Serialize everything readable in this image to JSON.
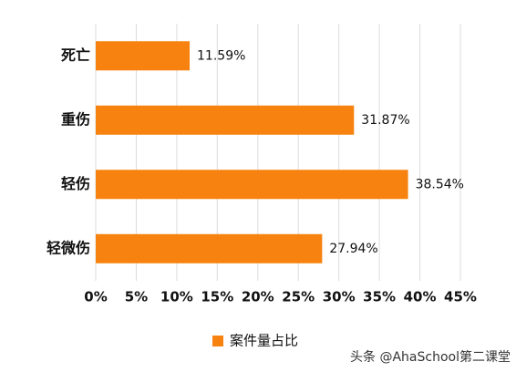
{
  "chart_data": {
    "type": "bar",
    "orientation": "horizontal",
    "categories": [
      "死亡",
      "重伤",
      "轻伤",
      "轻微伤"
    ],
    "series": [
      {
        "name": "案件量占比",
        "color": "#f7820f",
        "values": [
          11.59,
          31.87,
          38.54,
          27.94
        ],
        "value_labels": [
          "11.59%",
          "31.87%",
          "38.54%",
          "27.94%"
        ]
      }
    ],
    "xlim": [
      0,
      45
    ],
    "xticks": [
      {
        "value": 0,
        "label": "0%"
      },
      {
        "value": 5,
        "label": "5%"
      },
      {
        "value": 10,
        "label": "10%"
      },
      {
        "value": 15,
        "label": "15%"
      },
      {
        "value": 20,
        "label": "20%"
      },
      {
        "value": 25,
        "label": "25%"
      },
      {
        "value": 30,
        "label": "30%"
      },
      {
        "value": 35,
        "label": "35%"
      },
      {
        "value": 40,
        "label": "40%"
      },
      {
        "value": 45,
        "label": "45%"
      }
    ],
    "grid": true,
    "legend": "bottom",
    "watermark": "头条 @AhaSchool第二课堂"
  }
}
